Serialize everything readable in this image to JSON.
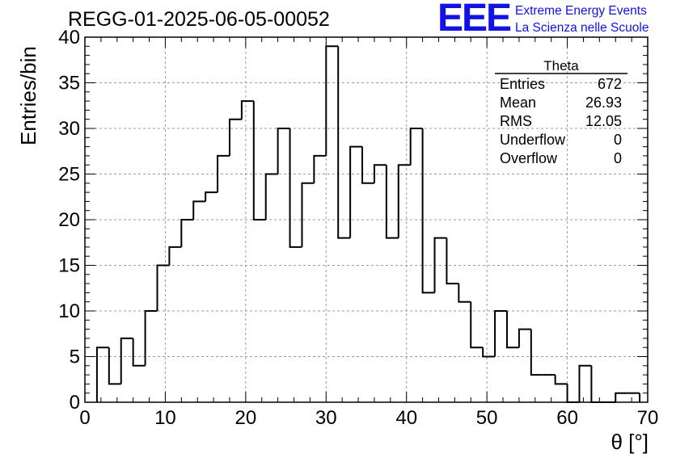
{
  "title": "REGG-01-2025-06-05-00052",
  "logo": {
    "mark": "EEE",
    "line1": "Extreme Energy Events",
    "line2": "La Scienza nelle Scuole"
  },
  "stats_box": {
    "name": "Theta",
    "rows": [
      {
        "label": "Entries",
        "value": "672"
      },
      {
        "label": "Mean",
        "value": "26.93"
      },
      {
        "label": "RMS",
        "value": "12.05"
      },
      {
        "label": "Underflow",
        "value": "0"
      },
      {
        "label": "Overflow",
        "value": "0"
      }
    ]
  },
  "chart_data": {
    "type": "bar",
    "histogram": true,
    "xlabel": "θ [°]",
    "ylabel": "Entries/bin",
    "xlim": [
      0,
      70
    ],
    "ylim": [
      0,
      40
    ],
    "bin_width": 1.5,
    "x_start": 1.5,
    "values": [
      6,
      2,
      7,
      4,
      10,
      15,
      17,
      20,
      22,
      23,
      27,
      31,
      33,
      20,
      25,
      30,
      17,
      24,
      27,
      39,
      18,
      28,
      24,
      26,
      18,
      26,
      30,
      12,
      18,
      13,
      11,
      6,
      5,
      10,
      6,
      8,
      3,
      3,
      2,
      0,
      4,
      0,
      0,
      1,
      1
    ],
    "x_ticks": [
      "0",
      "10",
      "20",
      "30",
      "40",
      "50",
      "60",
      "70"
    ],
    "y_ticks": [
      "0",
      "5",
      "10",
      "15",
      "20",
      "25",
      "30",
      "35",
      "40"
    ],
    "grid": true
  },
  "colors": {
    "line": "#000000",
    "grid": "#9a9a9a",
    "logo": "#1212e6"
  }
}
